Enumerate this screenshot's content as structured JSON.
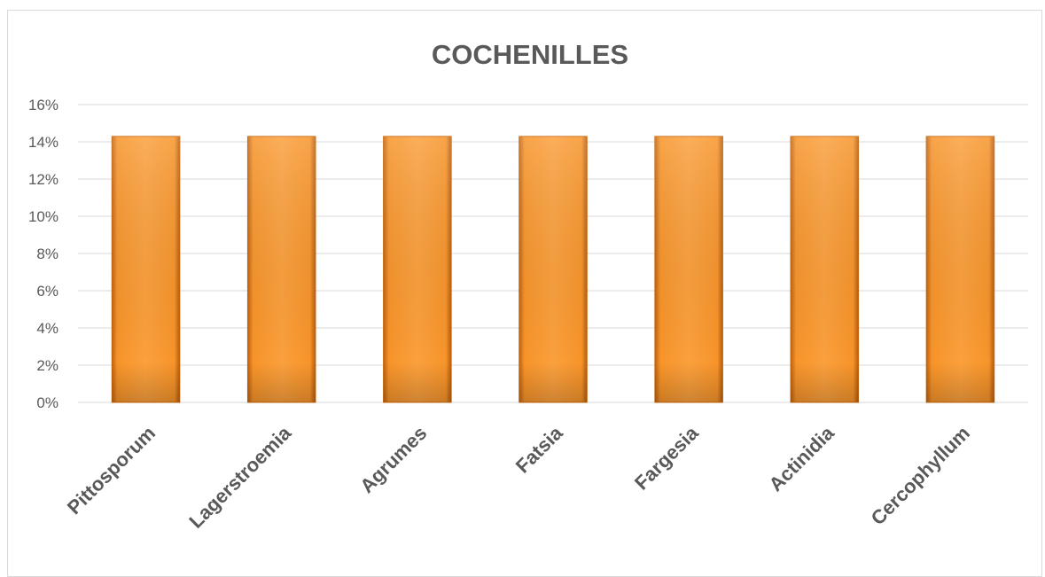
{
  "chart_data": {
    "type": "bar",
    "title": "COCHENILLES",
    "xlabel": "",
    "ylabel": "",
    "categories": [
      "Pittosporum",
      "Lagerstroemia",
      "Agrumes",
      "Fatsia",
      "Fargesia",
      "Actinidia",
      "Cercophyllum"
    ],
    "values": [
      0.1429,
      0.1429,
      0.1429,
      0.1429,
      0.1429,
      0.1429,
      0.1429
    ],
    "ylim": [
      0,
      0.16
    ],
    "yticks": [
      "0%",
      "2%",
      "4%",
      "6%",
      "8%",
      "10%",
      "12%",
      "14%",
      "16%"
    ],
    "grid": true,
    "legend": "none",
    "colors": {
      "bar_light": "#fba03d",
      "bar_mid": "#f58e1f",
      "bar_dark": "#c0620e",
      "grid": "#d9d9d9",
      "text": "#595959"
    }
  }
}
